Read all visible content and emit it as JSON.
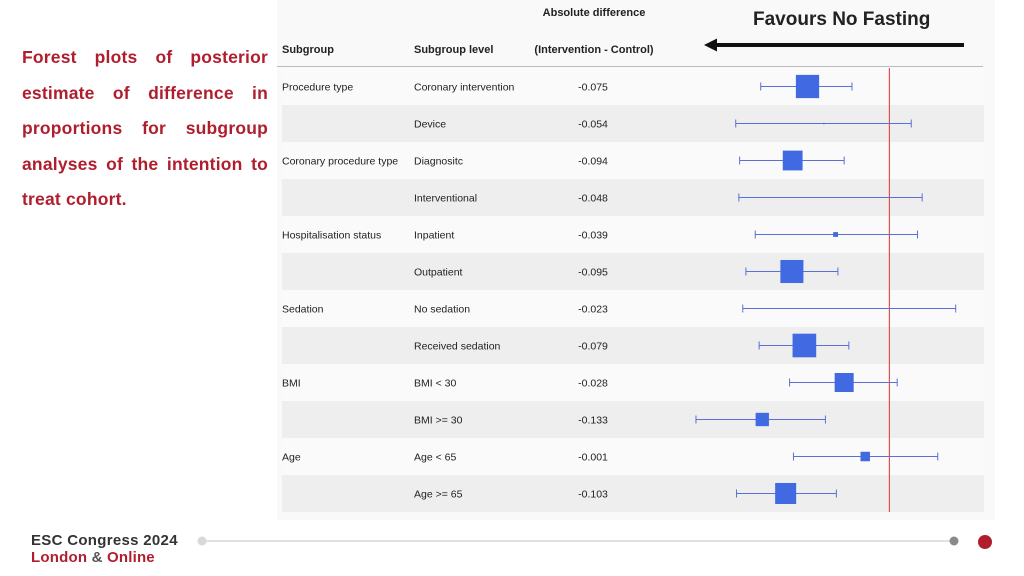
{
  "slide": {
    "title": "Forest plots of posterior estimate of difference in proportions for subgroup analyses of the intention to treat cohort.",
    "favours_label": "Favours No Fasting"
  },
  "footer": {
    "congress": "ESC Congress 2024",
    "city": "London",
    "amp": "&",
    "online": "Online"
  },
  "colors": {
    "accent": "#b01e2e",
    "box": "#4169e1",
    "ref_line": "#e05050"
  },
  "chart_data": {
    "type": "forest",
    "header_top": "Absolute difference",
    "columns": [
      "Subgroup",
      "Subgroup level",
      "(Intervention - Control)"
    ],
    "reference_line": 0.03,
    "xlim": [
      -0.25,
      0.15
    ],
    "x_ticks": [
      "-0.25",
      "-0.2",
      "-0.15",
      "-0.1",
      "-0.05",
      "0",
      "0.05",
      "0.1",
      "0.15"
    ],
    "rows": [
      {
        "subgroup": "Procedure type",
        "level": "Coronary intervention",
        "value": "-0.075",
        "est": -0.075,
        "lo": -0.135,
        "hi": -0.018
      },
      {
        "subgroup": "",
        "level": "Device",
        "value": "-0.054",
        "est": -0.054,
        "lo": -0.167,
        "hi": 0.058
      },
      {
        "subgroup": "Coronary procedure type",
        "level": "Diagnositc",
        "value": "-0.094",
        "est": -0.094,
        "lo": -0.162,
        "hi": -0.028
      },
      {
        "subgroup": "",
        "level": "Interventional",
        "value": "-0.048",
        "est": -0.048,
        "lo": -0.163,
        "hi": 0.072
      },
      {
        "subgroup": "Hospitalisation status",
        "level": "Inpatient",
        "value": "-0.039",
        "est": -0.039,
        "lo": -0.142,
        "hi": 0.066
      },
      {
        "subgroup": "",
        "level": "Outpatient",
        "value": "-0.095",
        "est": -0.095,
        "lo": -0.154,
        "hi": -0.036
      },
      {
        "subgroup": "Sedation",
        "level": "No sedation",
        "value": "-0.023",
        "est": -0.023,
        "lo": -0.158,
        "hi": 0.115
      },
      {
        "subgroup": "",
        "level": "Received sedation",
        "value": "-0.079",
        "est": -0.079,
        "lo": -0.137,
        "hi": -0.022
      },
      {
        "subgroup": "BMI",
        "level": "BMI < 30",
        "value": "-0.028",
        "est": -0.028,
        "lo": -0.098,
        "hi": 0.04
      },
      {
        "subgroup": "",
        "level": "BMI >= 30",
        "value": "-0.133",
        "est": -0.133,
        "lo": -0.218,
        "hi": -0.052
      },
      {
        "subgroup": "Age",
        "level": "Age < 65",
        "value": "-0.001",
        "est": -0.001,
        "lo": -0.093,
        "hi": 0.092
      },
      {
        "subgroup": "",
        "level": "Age >= 65",
        "value": "-0.103",
        "est": -0.103,
        "lo": -0.166,
        "hi": -0.038
      }
    ]
  }
}
